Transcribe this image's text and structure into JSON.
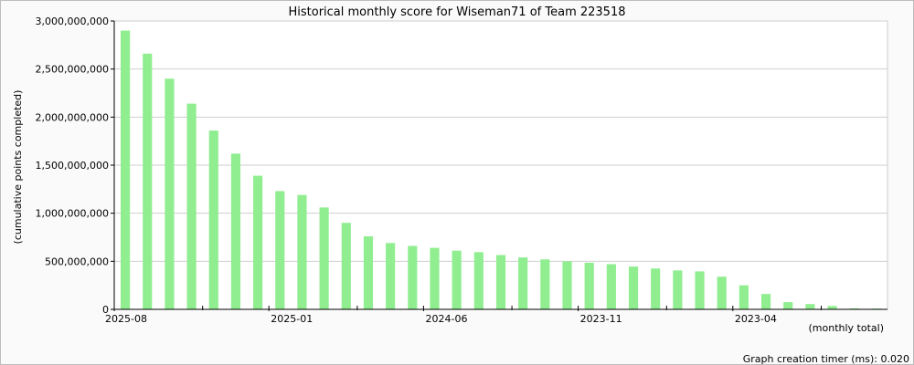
{
  "chart_data": {
    "type": "bar",
    "title": "Historical monthly score for Wiseman71 of Team 223518",
    "ylabel": "(cumulative points completed)",
    "xlabel": "(monthly total)",
    "ylim": [
      0,
      3000000000
    ],
    "yticks": [
      0,
      500000000,
      1000000000,
      1500000000,
      2000000000,
      2500000000,
      3000000000
    ],
    "ytick_labels": [
      "0",
      "500,000,000",
      "1,000,000,000",
      "1,500,000,000",
      "2,000,000,000",
      "2,500,000,000",
      "3,000,000,000"
    ],
    "grid": true,
    "color": "#90ee90",
    "x_labels": [
      {
        "label": "2025-08",
        "index": 0
      },
      {
        "label": "2025-01",
        "index": 7
      },
      {
        "label": "2024-06",
        "index": 14
      },
      {
        "label": "2023-11",
        "index": 21
      },
      {
        "label": "2023-04",
        "index": 28
      }
    ],
    "x_minor_tick_indices": [
      3.5,
      10.5,
      17.5,
      24.5,
      31.5
    ],
    "values": [
      2900000000,
      2660000000,
      2400000000,
      2140000000,
      1860000000,
      1620000000,
      1390000000,
      1230000000,
      1190000000,
      1060000000,
      900000000,
      760000000,
      690000000,
      660000000,
      640000000,
      610000000,
      595000000,
      565000000,
      540000000,
      520000000,
      500000000,
      485000000,
      470000000,
      445000000,
      425000000,
      405000000,
      395000000,
      340000000,
      250000000,
      160000000,
      75000000,
      55000000,
      35000000,
      10000000,
      8000000
    ]
  },
  "footer": {
    "timer_text": "Graph creation timer (ms): 0.020"
  }
}
